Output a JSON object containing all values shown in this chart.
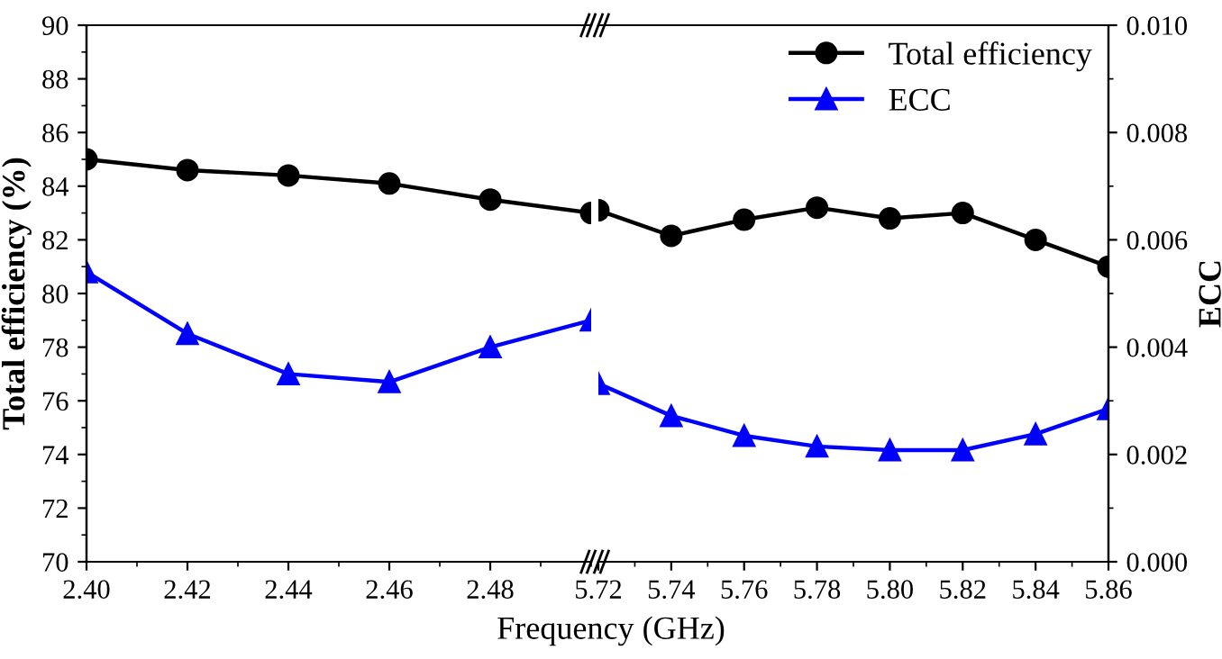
{
  "chart_data": [
    {
      "type": "line",
      "x": [
        2.4,
        2.42,
        2.44,
        2.46,
        2.48,
        2.5
      ],
      "xlim": [
        2.4,
        2.5
      ],
      "xticks": [
        {
          "value": 2.4,
          "label": "2.40"
        },
        {
          "value": 2.42,
          "label": "2.42"
        },
        {
          "value": 2.44,
          "label": "2.44"
        },
        {
          "value": 2.46,
          "label": "2.46"
        },
        {
          "value": 2.48,
          "label": "2.48"
        }
      ],
      "ylim": [
        70,
        90
      ],
      "yticks": [
        70,
        72,
        74,
        76,
        78,
        80,
        82,
        84,
        86,
        88,
        90
      ],
      "y2lim": [
        0,
        0.01
      ],
      "ylabel": "Total efficiency (%)",
      "xlabel": "Frequency (GHz)",
      "line_style": "solid",
      "grid": false,
      "legend": false,
      "series": [
        {
          "color": "#000000",
          "marker": "circle",
          "values": [
            85.0,
            84.6,
            84.4,
            84.1,
            83.5,
            83.0
          ]
        },
        {
          "color": "#0000ff",
          "marker": "triangle",
          "axis": "y2",
          "values": [
            0.0054,
            0.00425,
            0.0035,
            0.00335,
            0.004,
            0.0045
          ]
        }
      ]
    },
    {
      "type": "line",
      "x": [
        5.72,
        5.74,
        5.76,
        5.78,
        5.8,
        5.82,
        5.84,
        5.86
      ],
      "xlim": [
        5.72,
        5.86
      ],
      "xticks": [
        {
          "value": 5.72,
          "label": "5.72"
        },
        {
          "value": 5.74,
          "label": "5.74"
        },
        {
          "value": 5.76,
          "label": "5.76"
        },
        {
          "value": 5.78,
          "label": "5.78"
        },
        {
          "value": 5.8,
          "label": "5.80"
        },
        {
          "value": 5.82,
          "label": "5.82"
        },
        {
          "value": 5.84,
          "label": "5.84"
        },
        {
          "value": 5.86,
          "label": "5.86"
        }
      ],
      "ylim": [
        70,
        90
      ],
      "y2lim": [
        0,
        0.01
      ],
      "y2ticks": [
        {
          "value": 0,
          "label": "0.000"
        },
        {
          "value": 0.002,
          "label": "0.002"
        },
        {
          "value": 0.004,
          "label": "0.004"
        },
        {
          "value": 0.006,
          "label": "0.006"
        },
        {
          "value": 0.008,
          "label": "0.008"
        },
        {
          "value": 0.01,
          "label": "0.010"
        }
      ],
      "y2label": "ECC",
      "line_style": "solid",
      "grid": false,
      "legend": "top right",
      "series": [
        {
          "name": "Total efficiency",
          "color": "#000000",
          "marker": "circle",
          "values": [
            83.1,
            82.15,
            82.75,
            83.2,
            82.8,
            83.0,
            82.0,
            81.0
          ]
        },
        {
          "name": "ECC",
          "color": "#0000ff",
          "marker": "triangle",
          "axis": "y2",
          "values": [
            0.00332,
            0.00272,
            0.00235,
            0.00215,
            0.00208,
            0.00208,
            0.00238,
            0.00285
          ]
        }
      ]
    }
  ]
}
